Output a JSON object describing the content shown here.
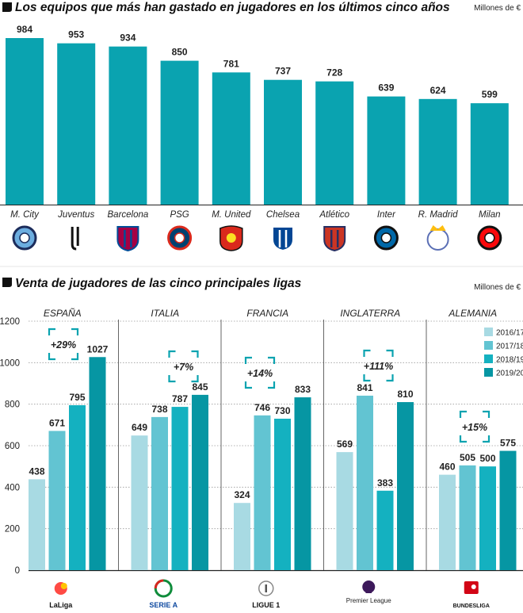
{
  "chart_data": [
    {
      "type": "bar",
      "title": "Los equipos que más han gastado en jugadores en los últimos cinco años",
      "unit_label": "Millones de €",
      "categories": [
        "M. City",
        "Juventus",
        "Barcelona",
        "PSG",
        "M. United",
        "Chelsea",
        "Atlético",
        "Inter",
        "R. Madrid",
        "Milan"
      ],
      "values": [
        984,
        953,
        934,
        850,
        781,
        737,
        728,
        639,
        624,
        599
      ],
      "logo_icons": [
        "man-city-crest-icon",
        "juventus-crest-icon",
        "barcelona-crest-icon",
        "psg-crest-icon",
        "man-united-crest-icon",
        "chelsea-crest-icon",
        "atletico-crest-icon",
        "inter-crest-icon",
        "real-madrid-crest-icon",
        "milan-crest-icon"
      ],
      "ylim": [
        0,
        1000
      ],
      "color": "#0aa3b0"
    },
    {
      "type": "bar",
      "title": "Venta de jugadores de las cinco principales ligas",
      "unit_label": "Millones de €",
      "categories": [
        "ESPAÑA",
        "ITALIA",
        "FRANCIA",
        "INGLATERRA",
        "ALEMANIA"
      ],
      "league_logos": [
        {
          "icon": "laliga-logo-icon",
          "text": "LaLiga"
        },
        {
          "icon": "serie-a-logo-icon",
          "text": "SERIE A"
        },
        {
          "icon": "ligue-1-logo-icon",
          "text": "LIGUE 1"
        },
        {
          "icon": "premier-league-logo-icon",
          "text": "Premier League"
        },
        {
          "icon": "bundesliga-logo-icon",
          "text": "BUNDESLIGA"
        }
      ],
      "growth_labels": [
        "+29%",
        "+7%",
        "+14%",
        "+111%",
        "+15%"
      ],
      "series": [
        {
          "name": "2016/17",
          "color": "#a8dae3",
          "values": [
            438,
            649,
            324,
            569,
            460
          ]
        },
        {
          "name": "2017/18",
          "color": "#62c4d2",
          "values": [
            671,
            738,
            746,
            841,
            505
          ]
        },
        {
          "name": "2018/19",
          "color": "#14b1c0",
          "values": [
            795,
            787,
            730,
            383,
            500
          ]
        },
        {
          "name": "2019/20",
          "color": "#0696a3",
          "values": [
            1027,
            845,
            833,
            810,
            575
          ]
        }
      ],
      "yticks": [
        0,
        200,
        400,
        600,
        800,
        1000,
        1200
      ],
      "ylim": [
        0,
        1200
      ],
      "grid": true,
      "legend_position": "top-right",
      "accent_color": "#0aa3b0"
    }
  ]
}
